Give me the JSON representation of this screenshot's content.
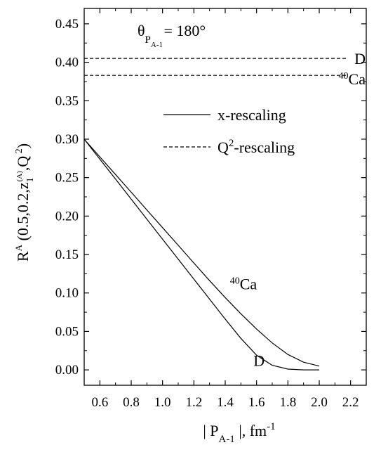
{
  "chart_data": {
    "type": "line",
    "xlim": [
      0.5,
      2.3
    ],
    "ylim": [
      -0.02,
      0.47
    ],
    "x_ticks": [
      "0.6",
      "0.8",
      "1.0",
      "1.2",
      "1.4",
      "1.6",
      "1.8",
      "2.0",
      "2.2"
    ],
    "y_ticks": [
      "0.00",
      "0.05",
      "0.10",
      "0.15",
      "0.20",
      "0.25",
      "0.30",
      "0.35",
      "0.40",
      "0.45"
    ],
    "xlabel": {
      "pre": "| P",
      "sub": "A-1",
      "mid": " |, fm",
      "sup": "-1"
    },
    "ylabel": {
      "pre": "R",
      "sup_A": "A",
      "mid": " (0.5,0.2,z",
      "sub_1": "1",
      "sup_A2": "(A)",
      "post": ",Q",
      "sup_2": " 2",
      "close": ")"
    },
    "annotation": {
      "theta": "θ",
      "sub": "P",
      "subsub": "A-1",
      "value": " = 180°"
    },
    "legend": {
      "placement": "upper-center",
      "items": [
        {
          "style": "solid",
          "label_main": "x-rescaling",
          "label_sup": ""
        },
        {
          "style": "dashed",
          "label_main": "Q",
          "label_sup": "2",
          "label_rest": "-rescaling"
        }
      ]
    },
    "series": [
      {
        "name": "D",
        "style": "solid",
        "x": [
          0.5,
          0.6,
          0.7,
          0.8,
          0.9,
          1.0,
          1.1,
          1.2,
          1.3,
          1.4,
          1.5,
          1.6,
          1.7,
          1.8,
          1.9,
          2.0
        ],
        "y": [
          0.3,
          0.274,
          0.248,
          0.222,
          0.196,
          0.17,
          0.144,
          0.118,
          0.092,
          0.066,
          0.041,
          0.019,
          0.006,
          0.001,
          0.0,
          0.0
        ]
      },
      {
        "name": "⁴⁰Ca",
        "style": "solid",
        "x": [
          0.5,
          0.6,
          0.7,
          0.8,
          0.9,
          1.0,
          1.1,
          1.2,
          1.3,
          1.4,
          1.5,
          1.6,
          1.7,
          1.8,
          1.9,
          2.0
        ],
        "y": [
          0.3,
          0.277,
          0.254,
          0.231,
          0.208,
          0.185,
          0.162,
          0.139,
          0.116,
          0.094,
          0.073,
          0.053,
          0.035,
          0.02,
          0.01,
          0.005
        ]
      },
      {
        "name": "D",
        "style": "dashed",
        "x": [
          0.5,
          2.3
        ],
        "y": [
          0.405,
          0.405
        ]
      },
      {
        "name": "⁴⁰Ca",
        "style": "dashed",
        "x": [
          0.5,
          2.3
        ],
        "y": [
          0.383,
          0.383
        ]
      }
    ],
    "curve_labels": [
      {
        "pre_sup": "40",
        "text": "Ca",
        "x": 1.43,
        "y": 0.105
      },
      {
        "pre_sup": "",
        "text": "D",
        "x": 1.58,
        "y": 0.005
      }
    ],
    "right_labels": [
      {
        "pre_sup": "",
        "text": "D",
        "y": 0.405
      },
      {
        "pre_sup": "40",
        "text": "Ca",
        "y": 0.383
      }
    ]
  }
}
